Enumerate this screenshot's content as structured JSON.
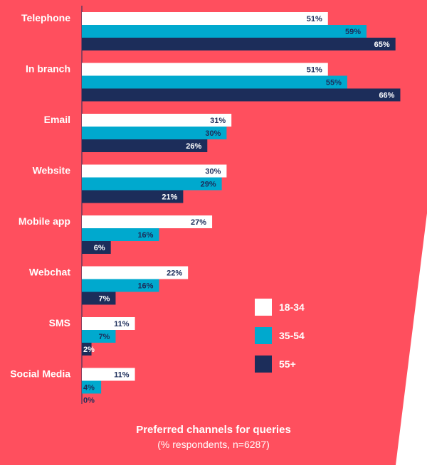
{
  "chart_data": {
    "type": "bar",
    "orientation": "horizontal",
    "title": "Preferred channels for queries",
    "subtitle": "(% respondents, n=6287)",
    "categories": [
      "Telephone",
      "In branch",
      "Email",
      "Website",
      "Mobile app",
      "Webchat",
      "SMS",
      "Social Media"
    ],
    "series": [
      {
        "name": "18-34",
        "color": "#ffffff",
        "values": [
          51,
          51,
          31,
          30,
          27,
          22,
          11,
          11
        ]
      },
      {
        "name": "35-54",
        "color": "#00a9ce",
        "values": [
          59,
          55,
          30,
          29,
          16,
          16,
          7,
          4
        ]
      },
      {
        "name": "55+",
        "color": "#1c2d5a",
        "values": [
          65,
          66,
          26,
          21,
          6,
          7,
          2,
          0
        ]
      }
    ],
    "value_suffix": "%",
    "xlim": [
      0,
      68
    ],
    "grid": false,
    "legend_position": "bottom-right",
    "background_color": "#ff4f5e"
  }
}
